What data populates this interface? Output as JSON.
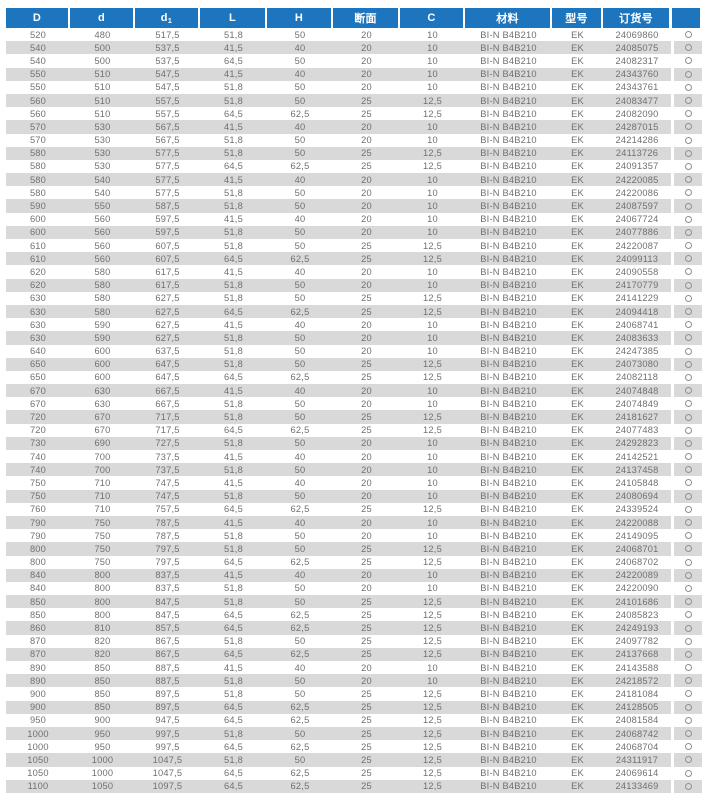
{
  "colors": {
    "header_bg": "#1d76bd",
    "header_text": "#ffffff",
    "row_bg": "#ffffff",
    "row_alt_bg": "#d9d9d9",
    "body_text": "#6f7073",
    "circle_outline": "#8f9094"
  },
  "table": {
    "columns": [
      {
        "key": "D",
        "label": "D"
      },
      {
        "key": "d",
        "label": "d"
      },
      {
        "key": "d1",
        "label": "d",
        "subscript": "1"
      },
      {
        "key": "L",
        "label": "L"
      },
      {
        "key": "H",
        "label": "H"
      },
      {
        "key": "section",
        "label": "断面"
      },
      {
        "key": "C",
        "label": "C"
      },
      {
        "key": "material",
        "label": "材料"
      },
      {
        "key": "model",
        "label": "型号"
      },
      {
        "key": "order_no",
        "label": "订货号"
      },
      {
        "key": "availability",
        "label": ""
      }
    ],
    "availability_icon": "circle-outline",
    "rows": [
      [
        "520",
        "480",
        "517,5",
        "51,8",
        "50",
        "20",
        "10",
        "BI-N B4B210",
        "EK",
        "24069860"
      ],
      [
        "540",
        "500",
        "537,5",
        "41,5",
        "40",
        "20",
        "10",
        "BI-N B4B210",
        "EK",
        "24085075"
      ],
      [
        "540",
        "500",
        "537,5",
        "64,5",
        "50",
        "20",
        "10",
        "BI-N B4B210",
        "EK",
        "24082317"
      ],
      [
        "550",
        "510",
        "547,5",
        "41,5",
        "40",
        "20",
        "10",
        "BI-N B4B210",
        "EK",
        "24343760"
      ],
      [
        "550",
        "510",
        "547,5",
        "51,8",
        "50",
        "20",
        "10",
        "BI-N B4B210",
        "EK",
        "24343761"
      ],
      [
        "560",
        "510",
        "557,5",
        "51,8",
        "50",
        "25",
        "12,5",
        "BI-N B4B210",
        "EK",
        "24083477"
      ],
      [
        "560",
        "510",
        "557,5",
        "64,5",
        "62,5",
        "25",
        "12,5",
        "BI-N B4B210",
        "EK",
        "24082090"
      ],
      [
        "570",
        "530",
        "567,5",
        "41,5",
        "40",
        "20",
        "10",
        "BI-N B4B210",
        "EK",
        "24287015"
      ],
      [
        "570",
        "530",
        "567,5",
        "51,8",
        "50",
        "20",
        "10",
        "BI-N B4B210",
        "EK",
        "24214286"
      ],
      [
        "580",
        "530",
        "577,5",
        "51,8",
        "50",
        "25",
        "12,5",
        "BI-N B4B210",
        "EK",
        "24113726"
      ],
      [
        "580",
        "530",
        "577,5",
        "64,5",
        "62,5",
        "25",
        "12,5",
        "BI-N B4B210",
        "EK",
        "24091357"
      ],
      [
        "580",
        "540",
        "577,5",
        "41,5",
        "40",
        "20",
        "10",
        "BI-N B4B210",
        "EK",
        "24220085"
      ],
      [
        "580",
        "540",
        "577,5",
        "51,8",
        "50",
        "20",
        "10",
        "BI-N B4B210",
        "EK",
        "24220086"
      ],
      [
        "590",
        "550",
        "587,5",
        "51,8",
        "50",
        "20",
        "10",
        "BI-N B4B210",
        "EK",
        "24087597"
      ],
      [
        "600",
        "560",
        "597,5",
        "41,5",
        "40",
        "20",
        "10",
        "BI-N B4B210",
        "EK",
        "24067724"
      ],
      [
        "600",
        "560",
        "597,5",
        "51,8",
        "50",
        "20",
        "10",
        "BI-N B4B210",
        "EK",
        "24077886"
      ],
      [
        "610",
        "560",
        "607,5",
        "51,8",
        "50",
        "25",
        "12,5",
        "BI-N B4B210",
        "EK",
        "24220087"
      ],
      [
        "610",
        "560",
        "607,5",
        "64,5",
        "62,5",
        "25",
        "12,5",
        "BI-N B4B210",
        "EK",
        "24099113"
      ],
      [
        "620",
        "580",
        "617,5",
        "41,5",
        "40",
        "20",
        "10",
        "BI-N B4B210",
        "EK",
        "24090558"
      ],
      [
        "620",
        "580",
        "617,5",
        "51,8",
        "50",
        "20",
        "10",
        "BI-N B4B210",
        "EK",
        "24170779"
      ],
      [
        "630",
        "580",
        "627,5",
        "51,8",
        "50",
        "25",
        "12,5",
        "BI-N B4B210",
        "EK",
        "24141229"
      ],
      [
        "630",
        "580",
        "627,5",
        "64,5",
        "62,5",
        "25",
        "12,5",
        "BI-N B4B210",
        "EK",
        "24094418"
      ],
      [
        "630",
        "590",
        "627,5",
        "41,5",
        "40",
        "20",
        "10",
        "BI-N B4B210",
        "EK",
        "24068741"
      ],
      [
        "630",
        "590",
        "627,5",
        "51,8",
        "50",
        "20",
        "10",
        "BI-N B4B210",
        "EK",
        "24083633"
      ],
      [
        "640",
        "600",
        "637,5",
        "51,8",
        "50",
        "20",
        "10",
        "BI-N B4B210",
        "EK",
        "24247385"
      ],
      [
        "650",
        "600",
        "647,5",
        "51,8",
        "50",
        "25",
        "12,5",
        "BI-N B4B210",
        "EK",
        "24073080"
      ],
      [
        "650",
        "600",
        "647,5",
        "64,5",
        "62,5",
        "25",
        "12,5",
        "BI-N B4B210",
        "EK",
        "24082118"
      ],
      [
        "670",
        "630",
        "667,5",
        "41,5",
        "40",
        "20",
        "10",
        "BI-N B4B210",
        "EK",
        "24074848"
      ],
      [
        "670",
        "630",
        "667,5",
        "51,8",
        "50",
        "20",
        "10",
        "BI-N B4B210",
        "EK",
        "24074849"
      ],
      [
        "720",
        "670",
        "717,5",
        "51,8",
        "50",
        "25",
        "12,5",
        "BI-N B4B210",
        "EK",
        "24181627"
      ],
      [
        "720",
        "670",
        "717,5",
        "64,5",
        "62,5",
        "25",
        "12,5",
        "BI-N B4B210",
        "EK",
        "24077483"
      ],
      [
        "730",
        "690",
        "727,5",
        "51,8",
        "50",
        "20",
        "10",
        "BI-N B4B210",
        "EK",
        "24292823"
      ],
      [
        "740",
        "700",
        "737,5",
        "41,5",
        "40",
        "20",
        "10",
        "BI-N B4B210",
        "EK",
        "24142521"
      ],
      [
        "740",
        "700",
        "737,5",
        "51,8",
        "50",
        "20",
        "10",
        "BI-N B4B210",
        "EK",
        "24137458"
      ],
      [
        "750",
        "710",
        "747,5",
        "41,5",
        "40",
        "20",
        "10",
        "BI-N B4B210",
        "EK",
        "24105848"
      ],
      [
        "750",
        "710",
        "747,5",
        "51,8",
        "50",
        "20",
        "10",
        "BI-N B4B210",
        "EK",
        "24080694"
      ],
      [
        "760",
        "710",
        "757,5",
        "64,5",
        "62,5",
        "25",
        "12,5",
        "BI-N B4B210",
        "EK",
        "24339524"
      ],
      [
        "790",
        "750",
        "787,5",
        "41,5",
        "40",
        "20",
        "10",
        "BI-N B4B210",
        "EK",
        "24220088"
      ],
      [
        "790",
        "750",
        "787,5",
        "51,8",
        "50",
        "20",
        "10",
        "BI-N B4B210",
        "EK",
        "24149095"
      ],
      [
        "800",
        "750",
        "797,5",
        "51,8",
        "50",
        "25",
        "12,5",
        "BI-N B4B210",
        "EK",
        "24068701"
      ],
      [
        "800",
        "750",
        "797,5",
        "64,5",
        "62,5",
        "25",
        "12,5",
        "BI-N B4B210",
        "EK",
        "24068702"
      ],
      [
        "840",
        "800",
        "837,5",
        "41,5",
        "40",
        "20",
        "10",
        "BI-N B4B210",
        "EK",
        "24220089"
      ],
      [
        "840",
        "800",
        "837,5",
        "51,8",
        "50",
        "20",
        "10",
        "BI-N B4B210",
        "EK",
        "24220090"
      ],
      [
        "850",
        "800",
        "847,5",
        "51,8",
        "50",
        "25",
        "12,5",
        "BI-N B4B210",
        "EK",
        "24101686"
      ],
      [
        "850",
        "800",
        "847,5",
        "64,5",
        "62,5",
        "25",
        "12,5",
        "BI-N B4B210",
        "EK",
        "24085823"
      ],
      [
        "860",
        "810",
        "857,5",
        "64,5",
        "62,5",
        "25",
        "12,5",
        "BI-N B4B210",
        "EK",
        "24249193"
      ],
      [
        "870",
        "820",
        "867,5",
        "51,8",
        "50",
        "25",
        "12,5",
        "BI-N B4B210",
        "EK",
        "24097782"
      ],
      [
        "870",
        "820",
        "867,5",
        "64,5",
        "62,5",
        "25",
        "12,5",
        "BI-N B4B210",
        "EK",
        "24137668"
      ],
      [
        "890",
        "850",
        "887,5",
        "41,5",
        "40",
        "20",
        "10",
        "BI-N B4B210",
        "EK",
        "24143588"
      ],
      [
        "890",
        "850",
        "887,5",
        "51,8",
        "50",
        "20",
        "10",
        "BI-N B4B210",
        "EK",
        "24218572"
      ],
      [
        "900",
        "850",
        "897,5",
        "51,8",
        "50",
        "25",
        "12,5",
        "BI-N B4B210",
        "EK",
        "24181084"
      ],
      [
        "900",
        "850",
        "897,5",
        "64,5",
        "62,5",
        "25",
        "12,5",
        "BI-N B4B210",
        "EK",
        "24128505"
      ],
      [
        "950",
        "900",
        "947,5",
        "64,5",
        "62,5",
        "25",
        "12,5",
        "BI-N B4B210",
        "EK",
        "24081584"
      ],
      [
        "1000",
        "950",
        "997,5",
        "51,8",
        "50",
        "25",
        "12,5",
        "BI-N B4B210",
        "EK",
        "24068742"
      ],
      [
        "1000",
        "950",
        "997,5",
        "64,5",
        "62,5",
        "25",
        "12,5",
        "BI-N B4B210",
        "EK",
        "24068704"
      ],
      [
        "1050",
        "1000",
        "1047,5",
        "51,8",
        "50",
        "25",
        "12,5",
        "BI-N B4B210",
        "EK",
        "24311917"
      ],
      [
        "1050",
        "1000",
        "1047,5",
        "64,5",
        "62,5",
        "25",
        "12,5",
        "BI-N B4B210",
        "EK",
        "24069614"
      ],
      [
        "1100",
        "1050",
        "1097,5",
        "64,5",
        "62,5",
        "25",
        "12,5",
        "BI-N B4B210",
        "EK",
        "24133469"
      ]
    ]
  }
}
